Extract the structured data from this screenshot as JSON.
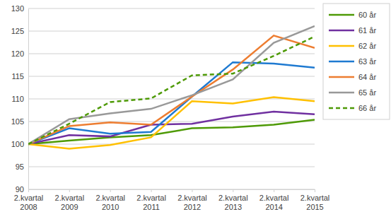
{
  "chart_data": {
    "type": "line",
    "categories": [
      "2.kvartal 2008",
      "2.kvartal 2009",
      "2.kvartal 2010",
      "2.kvartal 2011",
      "2.kvartal 2012",
      "2.kvartal 2013",
      "2.kvartal 2014",
      "2.kvartal 2015"
    ],
    "series": [
      {
        "name": "60 år",
        "color": "#4e9a06",
        "line_style": "solid",
        "values": [
          100,
          100.8,
          101.5,
          102,
          103.5,
          103.7,
          104.3,
          105.4
        ]
      },
      {
        "name": "61 år",
        "color": "#7030a0",
        "line_style": "solid",
        "values": [
          100,
          102,
          101.7,
          104.3,
          104.5,
          106.1,
          107.2,
          106.6
        ]
      },
      {
        "name": "62 år",
        "color": "#ffc000",
        "line_style": "solid",
        "values": [
          100,
          99,
          99.8,
          101.5,
          109.5,
          109,
          110.4,
          109.5
        ]
      },
      {
        "name": "63 år",
        "color": "#1f7ad1",
        "line_style": "solid",
        "values": [
          100,
          103.5,
          102.3,
          102.7,
          110.5,
          118.1,
          117.8,
          116.9
        ]
      },
      {
        "name": "64 år",
        "color": "#ed7d31",
        "line_style": "solid",
        "values": [
          100,
          104,
          104.8,
          104.3,
          110.5,
          116.5,
          124,
          121.3
        ]
      },
      {
        "name": "65 år",
        "color": "#999999",
        "line_style": "solid",
        "values": [
          100,
          105.5,
          106.8,
          107.8,
          110.8,
          114.3,
          122.4,
          126.1
        ]
      },
      {
        "name": "66 år",
        "color": "#4e9a06",
        "line_style": "dashed",
        "values": [
          100,
          104.5,
          109.3,
          110.1,
          115.2,
          115.6,
          119.5,
          123.8
        ]
      }
    ],
    "ylim": [
      90,
      130
    ],
    "yticks": [
      90,
      95,
      100,
      105,
      110,
      115,
      120,
      125,
      130
    ],
    "grid": true,
    "legend": "right"
  }
}
